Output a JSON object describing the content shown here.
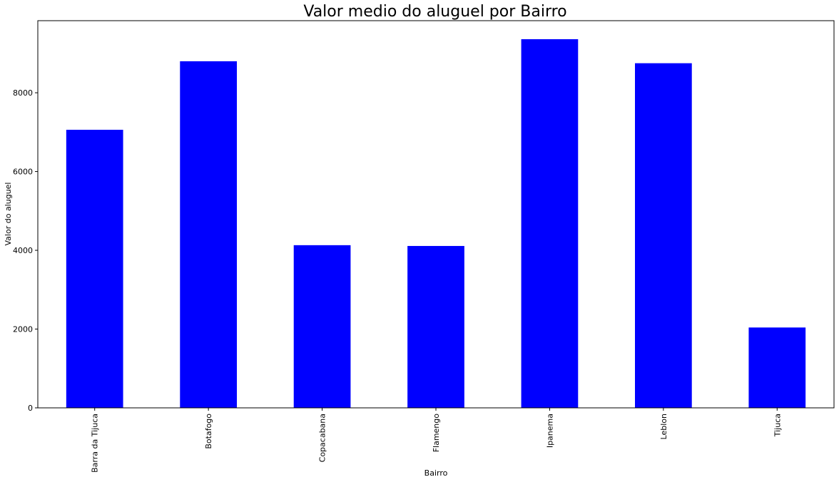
{
  "chart_data": {
    "type": "bar",
    "title": "Valor medio do aluguel por Bairro",
    "xlabel": "Bairro",
    "ylabel": "Valor do aluguel",
    "categories": [
      "Barra da Tijuca",
      "Botafogo",
      "Copacabana",
      "Flamengo",
      "Ipanema",
      "Leblon",
      "Tijuca"
    ],
    "values": [
      7060,
      8800,
      4130,
      4110,
      9360,
      8750,
      2040
    ],
    "ylim": [
      0,
      9830
    ],
    "yticks": [
      "0",
      "2000",
      "4000",
      "6000",
      "8000"
    ],
    "bar_color": "#0000ff",
    "grid": false,
    "legend": "none"
  }
}
